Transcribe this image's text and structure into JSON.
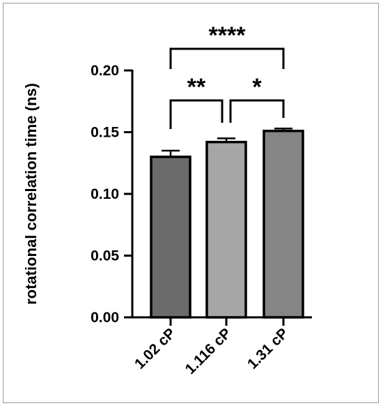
{
  "chart_data": {
    "type": "bar",
    "categories": [
      "1.02 cP",
      "1.116 cP",
      "1.31 cP"
    ],
    "values": [
      0.13,
      0.142,
      0.151
    ],
    "errors": [
      0.005,
      0.003,
      0.002
    ],
    "bar_colors": [
      "#6b6b6b",
      "#a6a6a6",
      "#858585"
    ],
    "ylabel": "rotational correlation time (ns)",
    "ylim": [
      0,
      0.2
    ],
    "yticks": [
      "0.00",
      "0.05",
      "0.10",
      "0.15",
      "0.20"
    ],
    "grid": false,
    "significance": [
      {
        "from": 0,
        "to": 1,
        "label": "**"
      },
      {
        "from": 1,
        "to": 2,
        "label": "*"
      },
      {
        "from": 0,
        "to": 2,
        "label": "****"
      }
    ]
  }
}
